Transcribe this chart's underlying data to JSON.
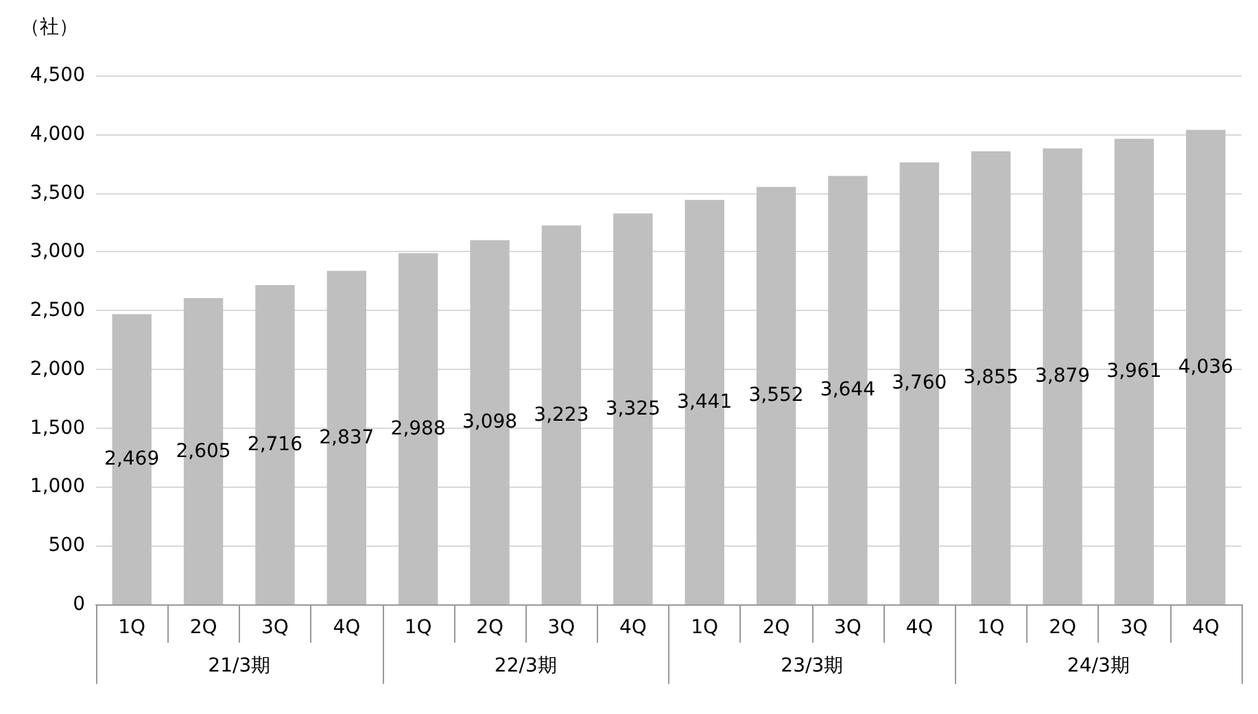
{
  "chart_data": {
    "type": "bar",
    "ylabel": "（社）",
    "categories": [
      "1Q",
      "2Q",
      "3Q",
      "4Q",
      "1Q",
      "2Q",
      "3Q",
      "4Q",
      "1Q",
      "2Q",
      "3Q",
      "4Q",
      "1Q",
      "2Q",
      "3Q",
      "4Q"
    ],
    "values": [
      2469,
      2605,
      2716,
      2837,
      2988,
      3098,
      3223,
      3325,
      3441,
      3552,
      3644,
      3760,
      3855,
      3879,
      3961,
      4036
    ],
    "value_labels": [
      "2,469",
      "2,605",
      "2,716",
      "2,837",
      "2,988",
      "3,098",
      "3,223",
      "3,325",
      "3,441",
      "3,552",
      "3,644",
      "3,760",
      "3,855",
      "3,879",
      "3,961",
      "4,036"
    ],
    "color": "#bfbfbf",
    "ylim": [
      0,
      4500
    ],
    "yticks": [
      0,
      500,
      {
        "value": 1000,
        "label": "1,000"
      },
      {
        "value": 1500,
        "label": "1,500"
      },
      {
        "value": 2000,
        "label": "2,000"
      },
      {
        "value": 2500,
        "label": "2,500"
      },
      {
        "value": 3000,
        "label": "3,000"
      },
      {
        "value": 3500,
        "label": "3,500"
      },
      {
        "value": 4000,
        "label": "4,000"
      },
      {
        "value": 4500,
        "label": "4,500"
      }
    ],
    "grid": "y",
    "annotations": [
      "21/3期",
      "22/3期",
      "23/3期",
      "24/3期"
    ]
  }
}
